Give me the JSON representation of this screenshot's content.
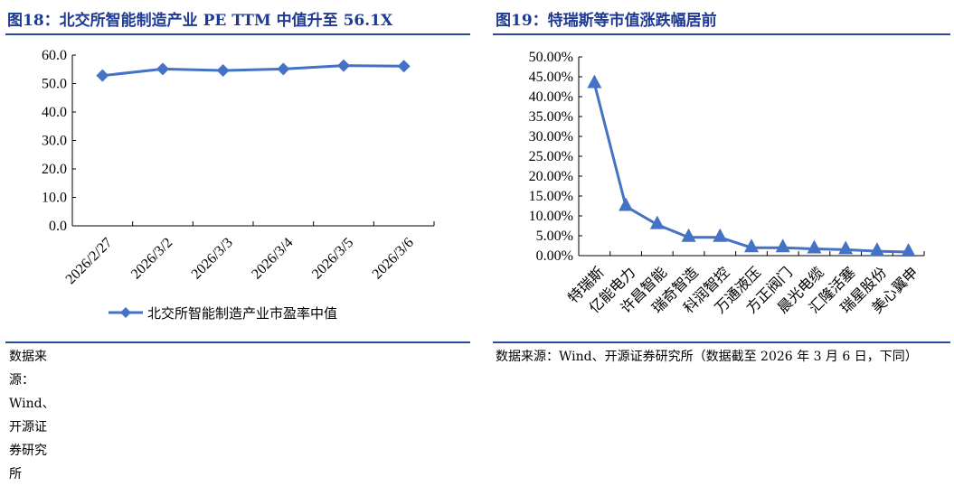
{
  "left": {
    "title": "图18：北交所智能制造产业 PE TTM 中值升至 56.1X",
    "source": "数据来源：Wind、开源证券研究所"
  },
  "right": {
    "title": "图19：特瑞斯等市值涨跌幅居前",
    "source": "数据来源：Wind、开源证券研究所（数据截至 2026 年 3 月 6 日，下同）"
  },
  "colors": {
    "series": "#4472c4",
    "title": "#1f3a93"
  },
  "chart_data": [
    {
      "type": "line",
      "categories": [
        "2026/2/27",
        "2026/3/2",
        "2026/3/3",
        "2026/3/4",
        "2026/3/5",
        "2026/3/6"
      ],
      "series": [
        {
          "name": "北交所智能制造产业市盈率中值",
          "values": [
            52.8,
            55.1,
            54.6,
            55.1,
            56.3,
            56.1
          ],
          "marker": "diamond"
        }
      ],
      "ylim": [
        0,
        60
      ],
      "yticks": [
        "0.0",
        "10.0",
        "20.0",
        "30.0",
        "40.0",
        "50.0",
        "60.0"
      ],
      "grid": false,
      "legend": "bottom"
    },
    {
      "type": "line",
      "categories": [
        "特瑞斯",
        "亿能电力",
        "许昌智能",
        "瑞奇智造",
        "科润智控",
        "万通液压",
        "方正阀门",
        "晨光电缆",
        "汇隆活塞",
        "瑞星股份",
        "美心翼申"
      ],
      "series": [
        {
          "values": [
            43.3,
            12.4,
            7.8,
            4.6,
            4.6,
            2.0,
            2.0,
            1.7,
            1.5,
            1.1,
            0.9
          ],
          "marker": "triangle"
        }
      ],
      "ylim": [
        0,
        50
      ],
      "yticks": [
        "0.00%",
        "5.00%",
        "10.00%",
        "15.00%",
        "20.00%",
        "25.00%",
        "30.00%",
        "35.00%",
        "40.00%",
        "45.00%",
        "50.00%"
      ],
      "grid": false,
      "legend": "none"
    }
  ]
}
